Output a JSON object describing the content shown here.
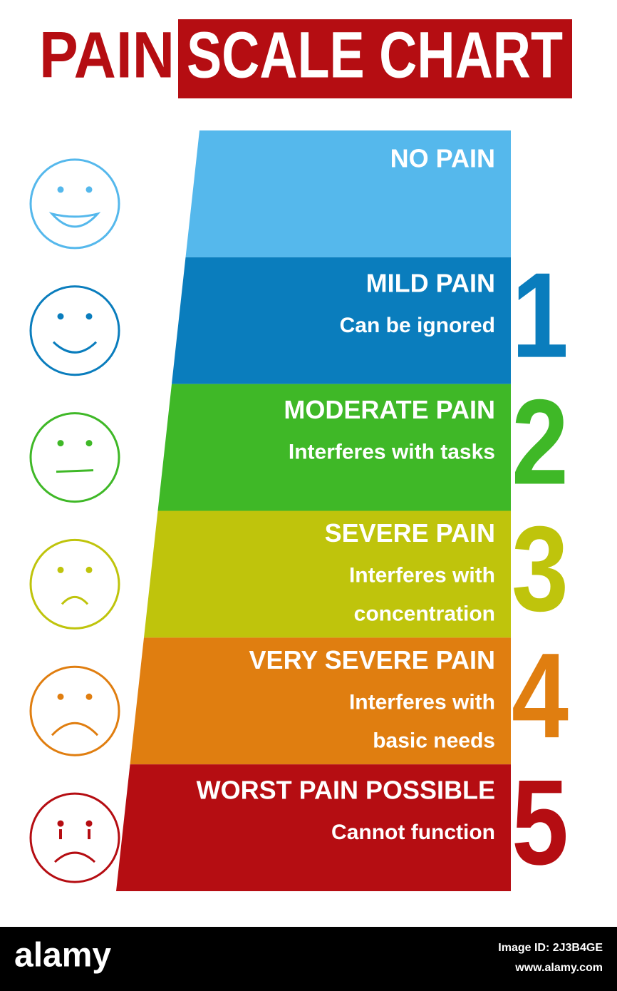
{
  "header": {
    "title_part1": "PAIN",
    "title_part2": "SCALE CHART"
  },
  "levels": [
    {
      "label": "NO PAIN",
      "description": [],
      "number": null,
      "color": "#55b8ec"
    },
    {
      "label": "MILD PAIN",
      "description": [
        "Can be ignored"
      ],
      "number": "1",
      "color": "#0a7dbd"
    },
    {
      "label": "MODERATE PAIN",
      "description": [
        "Interferes with tasks"
      ],
      "number": "2",
      "color": "#3fb827"
    },
    {
      "label": "SEVERE PAIN",
      "description": [
        "Interferes with",
        "concentration"
      ],
      "number": "3",
      "color": "#bfc40c"
    },
    {
      "label": "VERY SEVERE PAIN",
      "description": [
        "Interferes with",
        "basic needs"
      ],
      "number": "4",
      "color": "#e07e10"
    },
    {
      "label": "WORST PAIN POSSIBLE",
      "description": [
        "Cannot function"
      ],
      "number": "5",
      "color": "#b50d12"
    }
  ],
  "footer": {
    "brand": "alamy",
    "image_id": "Image ID: 2J3B4GE",
    "url": "www.alamy.com"
  }
}
